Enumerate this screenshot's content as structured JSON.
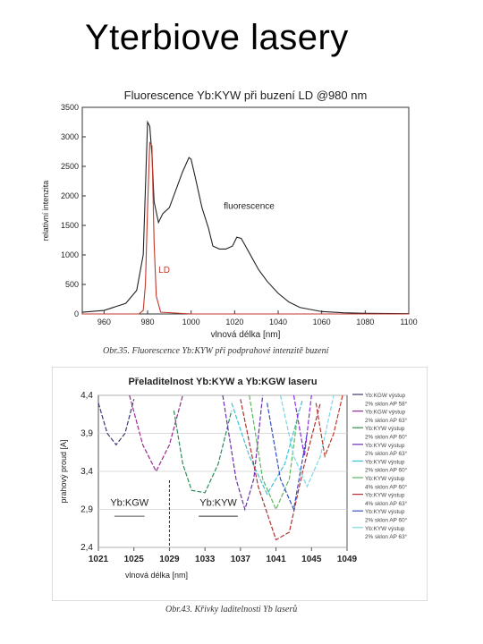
{
  "page_title": "Yterbiove lasery",
  "chart_data": [
    {
      "type": "line",
      "title": "Fluorescence Yb:KYW při buzení LD @980 nm",
      "xlabel": "vlnová délka [nm]",
      "ylabel": "relativní intenzita",
      "xlim": [
        950,
        1100
      ],
      "ylim": [
        0,
        3500
      ],
      "x_ticks": [
        "960",
        "980",
        "1000",
        "1020",
        "1040",
        "1060",
        "1080",
        "1100"
      ],
      "y_ticks": [
        "0",
        "500",
        "1000",
        "1500",
        "2000",
        "2500",
        "3000",
        "3500"
      ],
      "grid": false,
      "colors": {
        "fluorescence": "#222222",
        "LD": "#c0392b"
      },
      "series": [
        {
          "name": "fluorescence",
          "x": [
            950,
            960,
            970,
            975,
            978,
            980,
            981,
            982,
            983,
            985,
            987,
            990,
            993,
            996,
            999,
            1000,
            1002,
            1005,
            1008,
            1010,
            1013,
            1016,
            1019,
            1021,
            1023,
            1025,
            1028,
            1031,
            1035,
            1040,
            1045,
            1050,
            1060,
            1070,
            1080,
            1100
          ],
          "y": [
            30,
            60,
            180,
            400,
            1000,
            3250,
            3180,
            2700,
            1900,
            1550,
            1700,
            1800,
            2100,
            2400,
            2650,
            2620,
            2300,
            1800,
            1450,
            1150,
            1100,
            1100,
            1150,
            1300,
            1280,
            1150,
            950,
            750,
            550,
            350,
            200,
            110,
            40,
            20,
            10,
            5
          ]
        },
        {
          "name": "LD",
          "x": [
            950,
            976,
            978,
            979,
            980,
            981,
            982,
            983,
            984,
            986,
            1000,
            1100
          ],
          "y": [
            0,
            0,
            60,
            500,
            1800,
            2900,
            2850,
            1200,
            300,
            30,
            0,
            0
          ]
        }
      ],
      "annotations": [
        "fluorescence",
        "LD"
      ]
    },
    {
      "type": "line",
      "title": "Přeladitelnost Yb:KYW a Yb:KGW laseru",
      "xlabel": "vlnová délka [nm]",
      "ylabel": "prahový proud [A]",
      "xlim": [
        1021,
        1049
      ],
      "ylim": [
        2.4,
        4.4
      ],
      "x_ticks": [
        "1021",
        "1025",
        "1029",
        "1033",
        "1037",
        "1041",
        "1045",
        "1049"
      ],
      "y_ticks": [
        "2,4",
        "2,9",
        "3,4",
        "3,9",
        "4,4"
      ],
      "grid": true,
      "annotations": [
        "Yb:KGW",
        "Yb:KYW"
      ],
      "legend_position": "right",
      "legend": [
        "Yb:KGW výstup",
        "2% sklon AP 58°",
        "Yb:KGW výstup",
        "2% sklon AP 63°",
        "Yb:KYW výstup",
        "2% sklon AP 60°",
        "Yb:KYW výstup",
        "2% sklon AP 63°",
        "Yb:KYW výstup",
        "2% sklon AP 60°",
        "Yb:KYW výstup",
        "4% sklon AP 60°",
        "Yb:KYW výstup",
        "4% sklon AP 63°",
        "Yb:KYW výstup",
        "2% sklon AP 60°",
        "Yb:KYW výstup",
        "2% sklon AP 63°"
      ],
      "series": [
        {
          "color": "#3a3a6e",
          "x": [
            1021,
            1022,
            1023,
            1024,
            1025
          ],
          "y": [
            4.3,
            3.9,
            3.75,
            3.9,
            4.35
          ]
        },
        {
          "color": "#9b2c8f",
          "x": [
            1024.5,
            1026,
            1027.5,
            1029,
            1030.5
          ],
          "y": [
            4.4,
            3.75,
            3.4,
            3.75,
            4.4
          ]
        },
        {
          "color": "#2e8b57",
          "x": [
            1029.5,
            1030.5,
            1031.5,
            1033,
            1034.5,
            1036
          ],
          "y": [
            4.2,
            3.5,
            3.15,
            3.12,
            3.5,
            4.2
          ]
        },
        {
          "color": "#6b2fb5",
          "x": [
            1035,
            1036.5,
            1037.5,
            1038.5,
            1039.5
          ],
          "y": [
            4.4,
            3.3,
            2.9,
            3.3,
            4.4
          ]
        },
        {
          "color": "#40c0d0",
          "x": [
            1036,
            1038,
            1040,
            1042,
            1044
          ],
          "y": [
            4.3,
            3.6,
            3.1,
            3.5,
            4.35
          ]
        },
        {
          "color": "#5cb85c",
          "x": [
            1038,
            1039.5,
            1041,
            1042.5,
            1043.5
          ],
          "y": [
            4.4,
            3.3,
            2.9,
            3.3,
            4.2
          ]
        },
        {
          "color": "#b03030",
          "x": [
            1037,
            1039,
            1041,
            1042.5,
            1044,
            1046
          ],
          "y": [
            4.35,
            3.2,
            2.5,
            2.6,
            3.4,
            4.3
          ]
        },
        {
          "color": "#3050c0",
          "x": [
            1040,
            1041.5,
            1043,
            1044.5
          ],
          "y": [
            4.3,
            3.3,
            2.9,
            3.9
          ]
        },
        {
          "color": "#7ad7e6",
          "x": [
            1041.5,
            1043,
            1044.5,
            1046,
            1047.5
          ],
          "y": [
            4.4,
            3.6,
            3.2,
            3.6,
            4.4
          ]
        },
        {
          "color": "#8a2be2",
          "x": [
            1043,
            1044.2,
            1045
          ],
          "y": [
            4.4,
            3.6,
            4.4
          ]
        },
        {
          "color": "#c0392b",
          "x": [
            1045.5,
            1046.5,
            1047.5,
            1048.5
          ],
          "y": [
            4.3,
            3.6,
            3.9,
            4.4
          ]
        }
      ]
    }
  ],
  "captions": {
    "fig1": "Obr.35. Fluorescence Yb:KYW při podprahové intenzitě buzení",
    "fig2": "Obr.43. Křivky laditelnosti Yb laserů"
  }
}
